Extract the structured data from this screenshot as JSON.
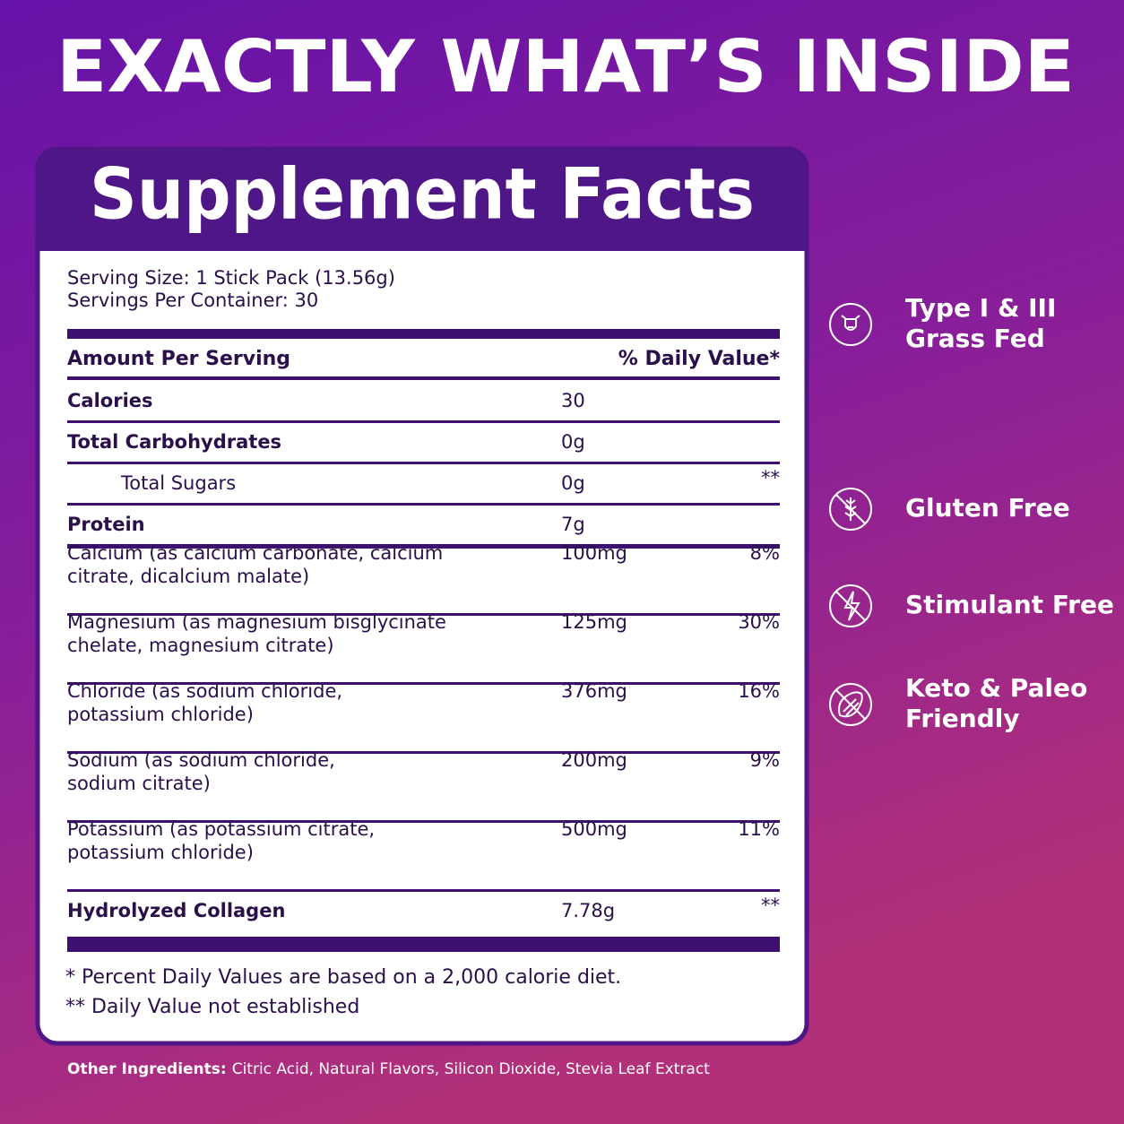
{
  "header": {
    "title": "EXACTLY WHAT’S INSIDE"
  },
  "panel": {
    "title": "Supplement Facts",
    "serving": [
      "Serving Size: 1 Stick Pack (13.56g)",
      "Servings Per Container: 30"
    ],
    "column_headers": [
      "Amount Per Serving",
      "% Daily Value*"
    ],
    "rows": [
      {
        "nutrient": [
          "Calories"
        ],
        "amount": "30",
        "bold": true
      },
      {
        "nutrient": [
          "Total Carbohydrates"
        ],
        "amount": "0g",
        "bold": true
      },
      {
        "nutrient": [
          "Total Sugars"
        ],
        "amount": "0g",
        "dv": "**",
        "indent": true
      },
      {
        "nutrient": [
          "Protein"
        ],
        "amount": "7g",
        "bold": true
      },
      {
        "nutrient": [
          "Calcium (as calcium carbonate, calcium",
          "citrate, dicalcium malate)"
        ],
        "amount": "100mg",
        "dv": "8%"
      },
      {
        "nutrient": [
          "Magnesium (as magnesium bisglycinate",
          "chelate, magnesium citrate)"
        ],
        "amount": "125mg",
        "dv": "30%"
      },
      {
        "nutrient": [
          "Chloride (as sodium chloride,",
          "potassium chloride)"
        ],
        "amount": "376mg",
        "dv": "16%"
      },
      {
        "nutrient": [
          "Sodium (as sodium chloride,",
          "sodium citrate)"
        ],
        "amount": "200mg",
        "dv": "9%"
      },
      {
        "nutrient": [
          "Potassium (as potassium citrate,",
          "potassium chloride)"
        ],
        "amount": "500mg",
        "dv": "11%"
      },
      {
        "nutrient": [
          "Hydrolyzed Collagen"
        ],
        "amount": "7.78g",
        "dv": "**",
        "bold": true
      }
    ],
    "footnotes": [
      "* Percent Daily Values are based on a 2,000 calorie diet.",
      "** Daily Value not established"
    ]
  },
  "other_ingredients": {
    "label": "Other Ingredients:",
    "text": "Citric Acid, Natural Flavors, Silicon Dioxide, Stevia Leaf Extract"
  },
  "badges": [
    {
      "lines": [
        "Type I & III",
        "Grass Fed"
      ]
    },
    {
      "lines": [
        "Gluten Free"
      ]
    },
    {
      "lines": [
        "Stimulant Free"
      ]
    },
    {
      "lines": [
        "Keto & Paleo",
        "Friendly"
      ]
    }
  ]
}
